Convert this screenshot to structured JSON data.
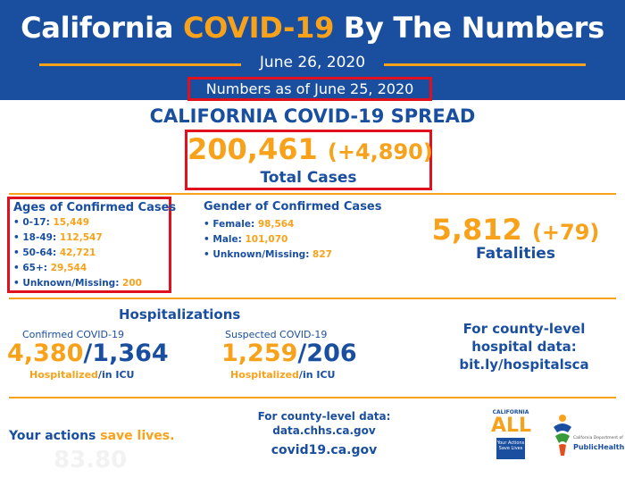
{
  "header": {
    "title_pre": "California ",
    "title_accent": "COVID-19",
    "title_post": " By The Numbers",
    "date": "June 26, 2020",
    "as_of": "Numbers as of June 25, 2020"
  },
  "spread": {
    "title": "CALIFORNIA COVID-19 SPREAD",
    "total_cases": "200,461",
    "delta": "(+4,890)",
    "label": "Total Cases"
  },
  "ages": {
    "title": "Ages of Confirmed Cases",
    "items": [
      {
        "label": "• 0-17: ",
        "value": "15,449"
      },
      {
        "label": "• 18-49: ",
        "value": "112,547"
      },
      {
        "label": "• 50-64: ",
        "value": "42,721"
      },
      {
        "label": "• 65+: ",
        "value": "29,544"
      },
      {
        "label": "• Unknown/Missing: ",
        "value": "200"
      }
    ]
  },
  "gender": {
    "title": "Gender of Confirmed Cases",
    "items": [
      {
        "label": "• Female: ",
        "value": "98,564"
      },
      {
        "label": "• Male: ",
        "value": "101,070"
      },
      {
        "label": "• Unknown/Missing: ",
        "value": "827"
      }
    ]
  },
  "fatalities": {
    "value": "5,812",
    "delta": "(+79)",
    "label": "Fatalities"
  },
  "hospitalizations": {
    "title": "Hospitalizations",
    "confirmed": {
      "subtitle": "Confirmed COVID-19",
      "hospitalized": "4,380",
      "sep": "/",
      "icu": "1,364",
      "cap_hosp": "Hospitalized",
      "cap_icu": "/in ICU"
    },
    "suspected": {
      "subtitle": "Suspected COVID-19",
      "hospitalized": "1,259",
      "sep": "/",
      "icu": "206",
      "cap_hosp": "Hospitalized",
      "cap_icu": "/in ICU"
    }
  },
  "county_hospital": {
    "line1": "For county-level",
    "line2": "hospital data:",
    "link": "bit.ly/hospitalsca"
  },
  "footer": {
    "actions_pre": "Your actions ",
    "actions_accent": "save lives.",
    "ghost_text": "83.80",
    "county_line1": "For county-level data:",
    "county_line2": "data.chhs.ca.gov",
    "site": "covid19.ca.gov"
  },
  "logos": {
    "all_top": "CALIFORNIA",
    "all_word": "ALL",
    "all_tag1": "Your Actions",
    "all_tag2": "Save Lives",
    "ph_small": "California Department of",
    "ph_name": "PublicHealth"
  },
  "colors": {
    "blue": "#1a4fa0",
    "orange": "#f8a21b",
    "red_highlight": "#e0101e"
  }
}
